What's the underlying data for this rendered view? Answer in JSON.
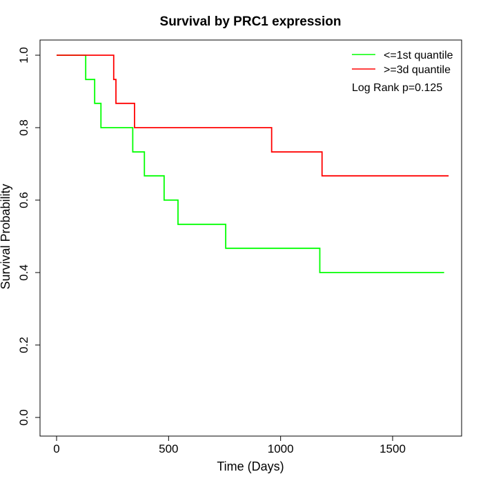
{
  "chart_data": {
    "type": "line",
    "title": "Survival by PRC1 expression",
    "xlabel": "Time (Days)",
    "ylabel": "Survival Probability",
    "xlim": [
      0,
      1800
    ],
    "ylim": [
      0,
      1
    ],
    "x_ticks": [
      0,
      500,
      1000,
      1500
    ],
    "y_ticks": [
      0.0,
      0.2,
      0.4,
      0.6,
      0.8,
      1.0
    ],
    "x_tick_labels": [
      "0",
      "500",
      "1000",
      "1500"
    ],
    "y_tick_labels": [
      "0.0",
      "0.2",
      "0.4",
      "0.6",
      "0.8",
      "1.0"
    ],
    "grid": false,
    "legend_position": "top-right",
    "annotation": "Log Rank p=0.125",
    "series": [
      {
        "name": "<=1st quantile",
        "color": "#00ff00",
        "step_x": [
          0,
          130,
          170,
          198,
          340,
          392,
          480,
          542,
          755,
          1175,
          1730
        ],
        "step_y": [
          1.0,
          0.933,
          0.867,
          0.8,
          0.733,
          0.667,
          0.6,
          0.533,
          0.467,
          0.4,
          0.4
        ]
      },
      {
        "name": ">=3d quantile",
        "color": "#ff0000",
        "step_x": [
          0,
          255,
          265,
          348,
          960,
          1185,
          1750
        ],
        "step_y": [
          1.0,
          0.933,
          0.867,
          0.8,
          0.733,
          0.667,
          0.667
        ]
      }
    ]
  }
}
